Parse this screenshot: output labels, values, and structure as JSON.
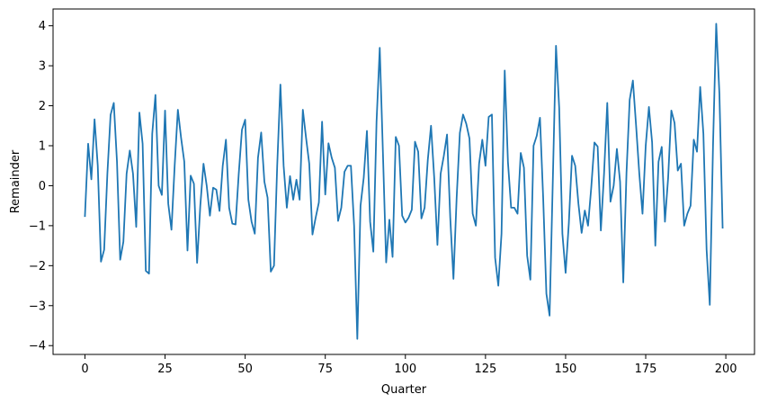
{
  "chart_data": {
    "type": "line",
    "title": "",
    "xlabel": "Quarter",
    "ylabel": "Remainder",
    "xlim": [
      -9.95,
      208.95
    ],
    "ylim": [
      -4.22,
      4.42
    ],
    "xticks": [
      0,
      25,
      50,
      75,
      100,
      125,
      150,
      175,
      200
    ],
    "yticks": [
      -4,
      -3,
      -2,
      -1,
      0,
      1,
      2,
      3,
      4
    ],
    "grid": false,
    "legend": "none",
    "series": [
      {
        "color": "#1f77b4",
        "values": [
          -0.76,
          1.05,
          0.16,
          1.66,
          0.5,
          -1.9,
          -1.6,
          0.3,
          1.77,
          2.07,
          0.6,
          -1.85,
          -1.4,
          0.3,
          0.88,
          0.3,
          -1.03,
          1.83,
          1.05,
          -2.13,
          -2.2,
          1.3,
          2.27,
          0.0,
          -0.23,
          1.88,
          -0.45,
          -1.1,
          0.5,
          1.9,
          1.2,
          0.6,
          -1.62,
          0.25,
          0.05,
          -1.93,
          -0.5,
          0.55,
          0.0,
          -0.75,
          -0.05,
          -0.1,
          -0.63,
          0.5,
          1.15,
          -0.55,
          -0.95,
          -0.97,
          0.3,
          1.4,
          1.65,
          -0.35,
          -0.9,
          -1.2,
          0.7,
          1.33,
          0.1,
          -0.3,
          -2.15,
          -2.0,
          0.5,
          2.53,
          0.5,
          -0.55,
          0.24,
          -0.35,
          0.15,
          -0.35,
          1.9,
          1.2,
          0.55,
          -1.22,
          -0.8,
          -0.42,
          1.6,
          -0.22,
          1.06,
          0.7,
          0.45,
          -0.88,
          -0.55,
          0.35,
          0.5,
          0.5,
          -1.0,
          -3.83,
          -0.5,
          0.2,
          1.37,
          -0.9,
          -1.65,
          1.6,
          3.45,
          0.8,
          -1.92,
          -0.85,
          -1.78,
          1.22,
          1.0,
          -0.75,
          -0.92,
          -0.8,
          -0.6,
          1.1,
          0.85,
          -0.82,
          -0.55,
          0.65,
          1.5,
          0.2,
          -1.48,
          0.3,
          0.75,
          1.28,
          -0.8,
          -2.33,
          -0.3,
          1.32,
          1.78,
          1.55,
          1.18,
          -0.7,
          -1.0,
          0.55,
          1.15,
          0.5,
          1.72,
          1.78,
          -1.8,
          -2.5,
          -1.2,
          2.88,
          0.6,
          -0.55,
          -0.55,
          -0.7,
          0.82,
          0.45,
          -1.75,
          -2.35,
          1.0,
          1.25,
          1.7,
          -0.3,
          -2.7,
          -3.25,
          0.1,
          3.5,
          1.95,
          -1.2,
          -2.18,
          -0.95,
          0.75,
          0.5,
          -0.45,
          -1.18,
          -0.62,
          -1.0,
          -0.05,
          1.08,
          0.98,
          -1.12,
          0.3,
          2.07,
          -0.4,
          0.0,
          0.92,
          0.1,
          -2.42,
          0.32,
          2.15,
          2.63,
          1.5,
          0.3,
          -0.7,
          1.0,
          1.97,
          1.08,
          -1.5,
          0.6,
          0.97,
          -0.9,
          0.2,
          1.88,
          1.57,
          0.38,
          0.55,
          -1.0,
          -0.7,
          -0.5,
          1.15,
          0.85,
          2.47,
          1.3,
          -1.6,
          -2.98,
          1.0,
          4.05,
          2.3,
          -1.05
        ]
      }
    ]
  },
  "colors": {
    "series": "#1f77b4",
    "axes": "#000000",
    "background": "#ffffff"
  }
}
